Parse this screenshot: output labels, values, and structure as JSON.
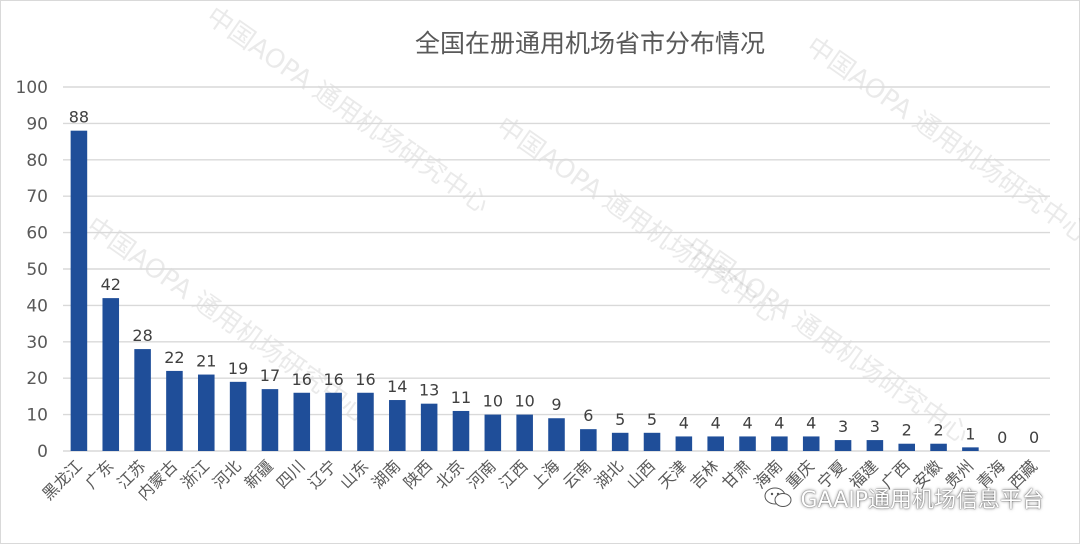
{
  "chart_data": {
    "type": "bar",
    "title": "全国在册通用机场省市分布情况",
    "categories": [
      "黑龙江",
      "广东",
      "江苏",
      "内蒙古",
      "浙江",
      "河北",
      "新疆",
      "四川",
      "辽宁",
      "山东",
      "湖南",
      "陕西",
      "北京",
      "河南",
      "江西",
      "上海",
      "云南",
      "湖北",
      "山西",
      "天津",
      "吉林",
      "甘肃",
      "海南",
      "重庆",
      "宁夏",
      "福建",
      "广西",
      "安徽",
      "贵州",
      "青海",
      "西藏"
    ],
    "values": [
      88,
      42,
      28,
      22,
      21,
      19,
      17,
      16,
      16,
      16,
      14,
      13,
      11,
      10,
      10,
      9,
      6,
      5,
      5,
      4,
      4,
      4,
      4,
      4,
      3,
      3,
      2,
      2,
      1,
      0,
      0
    ],
    "ylim": [
      0,
      100
    ],
    "yticks": [
      0,
      10,
      20,
      30,
      40,
      50,
      60,
      70,
      80,
      90,
      100
    ],
    "grid": true,
    "legend": "none",
    "bar_color": "#1f4e99"
  },
  "watermark": {
    "line1": "中国AOPA",
    "line2": "通用机场研究中心"
  },
  "credit": {
    "text": "GAAIP通用机场信息平台",
    "icon": "wechat-icon"
  }
}
